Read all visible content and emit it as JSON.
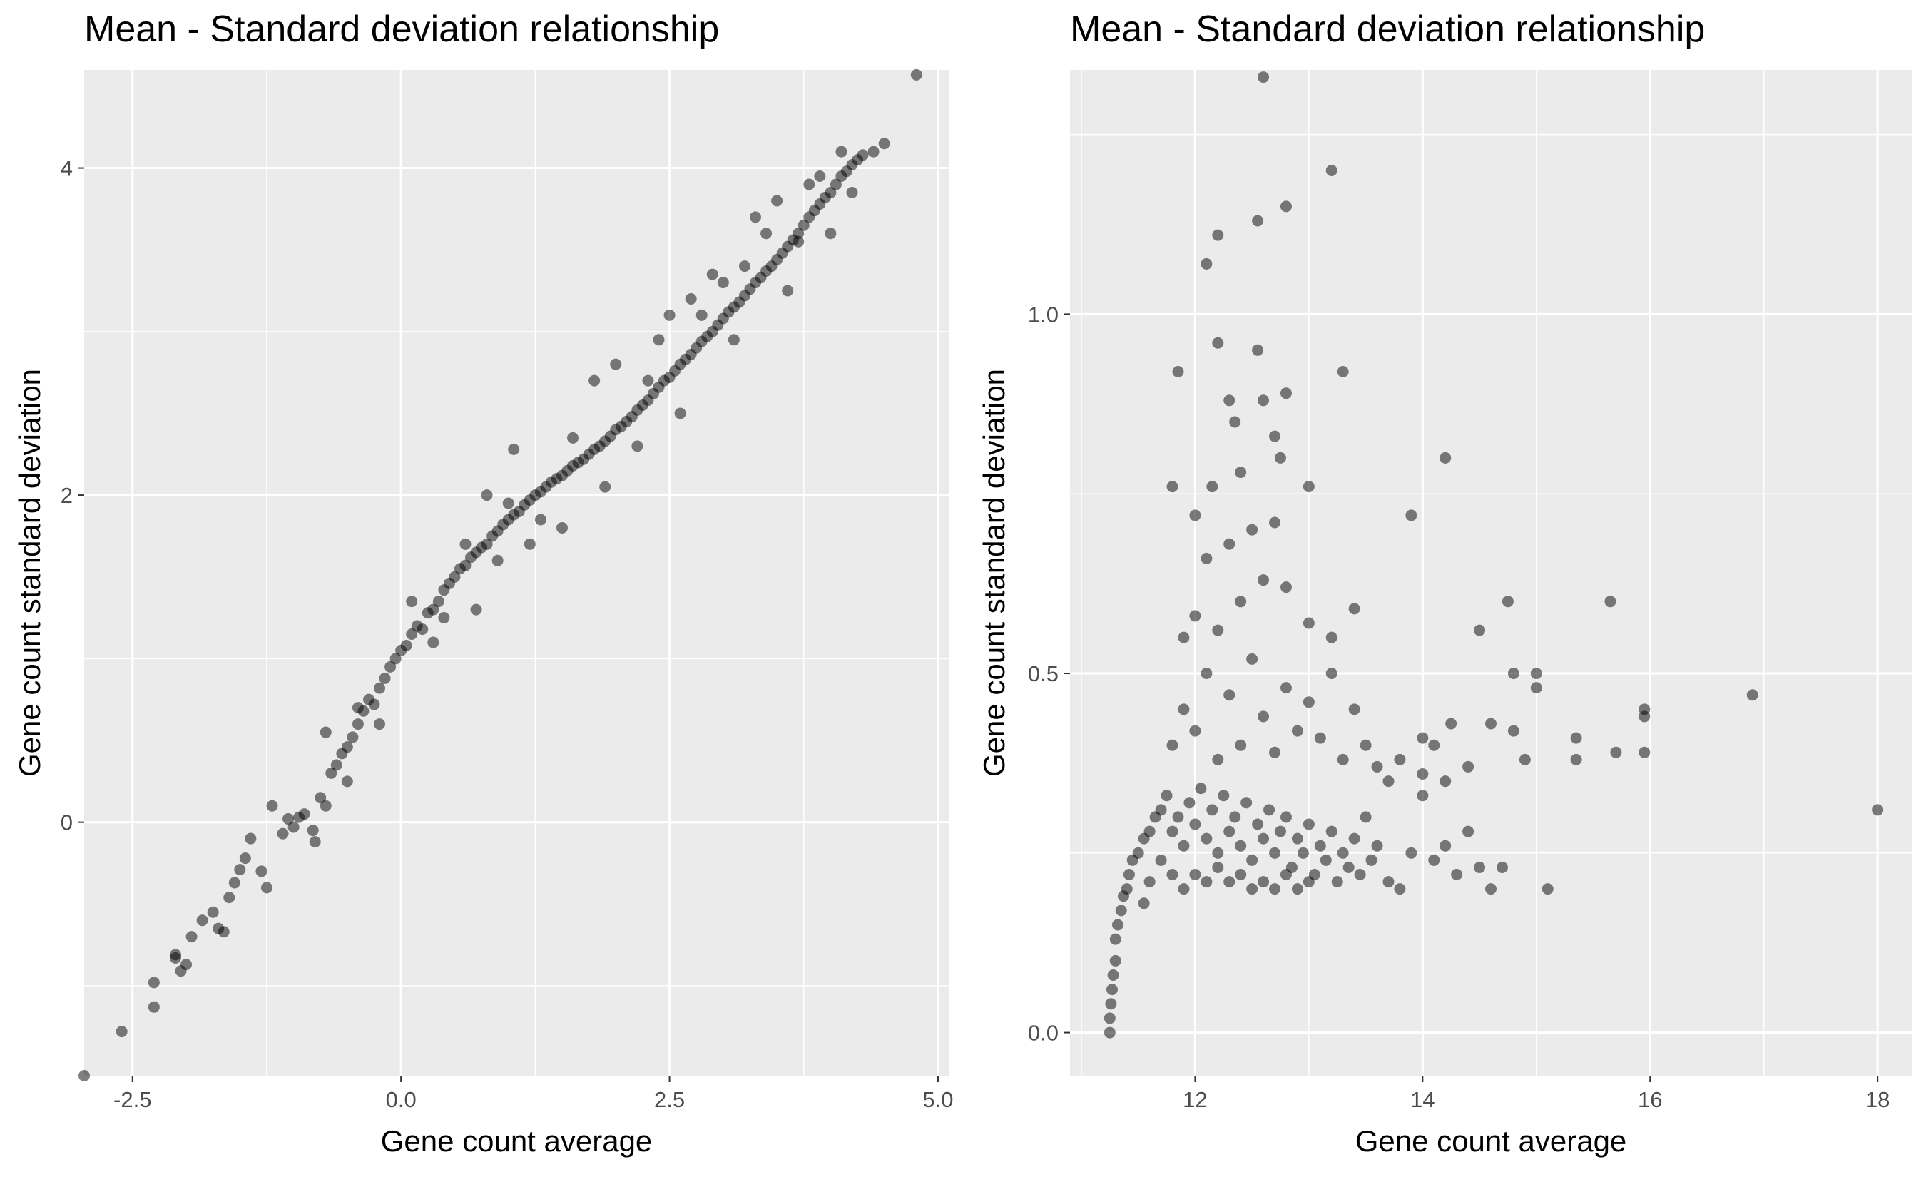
{
  "chart_data": [
    {
      "type": "scatter",
      "title": "Mean - Standard deviation relationship",
      "xlabel": "Gene count average",
      "ylabel": "Gene count standard deviation",
      "xlim": [
        -2.95,
        5.1
      ],
      "ylim": [
        -1.55,
        4.6
      ],
      "xticks": [
        -2.5,
        0.0,
        2.5,
        5.0
      ],
      "xtick_labels": [
        "-2.5",
        "0.0",
        "2.5",
        "5.0"
      ],
      "yticks": [
        0,
        2,
        4
      ],
      "ytick_labels": [
        "0",
        "2",
        "4"
      ],
      "grid": true,
      "legend": "none",
      "point_color": "#000000",
      "point_alpha": 0.5,
      "panel_background": "#ebebeb",
      "grid_color": "#ffffff",
      "points": [
        [
          -3.0,
          -1.57
        ],
        [
          -2.6,
          -1.28
        ],
        [
          -2.3,
          -1.13
        ],
        [
          -2.3,
          -0.98
        ],
        [
          -2.1,
          -0.81
        ],
        [
          -2.1,
          -0.83
        ],
        [
          -2.05,
          -0.91
        ],
        [
          -2.0,
          -0.87
        ],
        [
          -1.95,
          -0.7
        ],
        [
          -1.85,
          -0.6
        ],
        [
          -1.75,
          -0.55
        ],
        [
          -1.7,
          -0.65
        ],
        [
          -1.65,
          -0.67
        ],
        [
          -1.6,
          -0.46
        ],
        [
          -1.55,
          -0.37
        ],
        [
          -1.5,
          -0.29
        ],
        [
          -1.45,
          -0.22
        ],
        [
          -1.4,
          -0.1
        ],
        [
          -1.3,
          -0.3
        ],
        [
          -1.25,
          -0.4
        ],
        [
          -1.2,
          0.1
        ],
        [
          -1.1,
          -0.07
        ],
        [
          -1.05,
          0.02
        ],
        [
          -1.0,
          -0.03
        ],
        [
          -0.95,
          0.03
        ],
        [
          -0.9,
          0.05
        ],
        [
          -0.82,
          -0.05
        ],
        [
          -0.8,
          -0.12
        ],
        [
          -0.75,
          0.15
        ],
        [
          -0.7,
          0.1
        ],
        [
          -0.65,
          0.3
        ],
        [
          -0.6,
          0.35
        ],
        [
          -0.55,
          0.42
        ],
        [
          -0.5,
          0.46
        ],
        [
          -0.45,
          0.52
        ],
        [
          -0.4,
          0.6
        ],
        [
          -0.35,
          0.68
        ],
        [
          -0.3,
          0.75
        ],
        [
          -0.25,
          0.72
        ],
        [
          -0.2,
          0.82
        ],
        [
          -0.15,
          0.88
        ],
        [
          -0.1,
          0.95
        ],
        [
          -0.05,
          1.0
        ],
        [
          0.0,
          1.05
        ],
        [
          0.05,
          1.08
        ],
        [
          0.1,
          1.15
        ],
        [
          0.15,
          1.2
        ],
        [
          0.2,
          1.18
        ],
        [
          0.25,
          1.28
        ],
        [
          0.3,
          1.3
        ],
        [
          0.35,
          1.35
        ],
        [
          0.4,
          1.42
        ],
        [
          0.45,
          1.46
        ],
        [
          0.5,
          1.5
        ],
        [
          0.55,
          1.55
        ],
        [
          0.6,
          1.57
        ],
        [
          0.65,
          1.62
        ],
        [
          0.7,
          1.65
        ],
        [
          0.75,
          1.68
        ],
        [
          0.8,
          1.7
        ],
        [
          0.85,
          1.75
        ],
        [
          0.9,
          1.78
        ],
        [
          0.95,
          1.82
        ],
        [
          1.0,
          1.85
        ],
        [
          1.05,
          1.88
        ],
        [
          1.1,
          1.9
        ],
        [
          1.15,
          1.94
        ],
        [
          1.2,
          1.97
        ],
        [
          1.25,
          2.0
        ],
        [
          1.3,
          2.02
        ],
        [
          1.35,
          2.05
        ],
        [
          1.4,
          2.08
        ],
        [
          1.45,
          2.1
        ],
        [
          1.5,
          2.12
        ],
        [
          1.55,
          2.15
        ],
        [
          1.6,
          2.18
        ],
        [
          1.65,
          2.2
        ],
        [
          1.7,
          2.22
        ],
        [
          1.75,
          2.25
        ],
        [
          1.8,
          2.28
        ],
        [
          1.85,
          2.3
        ],
        [
          1.9,
          2.33
        ],
        [
          1.95,
          2.36
        ],
        [
          2.0,
          2.4
        ],
        [
          2.05,
          2.42
        ],
        [
          2.1,
          2.45
        ],
        [
          2.15,
          2.48
        ],
        [
          2.2,
          2.52
        ],
        [
          2.25,
          2.55
        ],
        [
          2.3,
          2.58
        ],
        [
          2.35,
          2.62
        ],
        [
          2.4,
          2.66
        ],
        [
          2.45,
          2.7
        ],
        [
          2.5,
          2.72
        ],
        [
          2.55,
          2.76
        ],
        [
          2.6,
          2.8
        ],
        [
          2.65,
          2.83
        ],
        [
          2.7,
          2.86
        ],
        [
          2.75,
          2.9
        ],
        [
          2.8,
          2.94
        ],
        [
          2.85,
          2.97
        ],
        [
          2.9,
          3.0
        ],
        [
          2.95,
          3.04
        ],
        [
          3.0,
          3.08
        ],
        [
          3.05,
          3.12
        ],
        [
          3.1,
          3.15
        ],
        [
          3.15,
          3.18
        ],
        [
          3.2,
          3.22
        ],
        [
          3.25,
          3.26
        ],
        [
          3.3,
          3.3
        ],
        [
          3.35,
          3.33
        ],
        [
          3.4,
          3.37
        ],
        [
          3.45,
          3.4
        ],
        [
          3.5,
          3.44
        ],
        [
          3.55,
          3.48
        ],
        [
          3.6,
          3.52
        ],
        [
          3.65,
          3.56
        ],
        [
          3.7,
          3.6
        ],
        [
          3.75,
          3.65
        ],
        [
          3.8,
          3.7
        ],
        [
          3.85,
          3.74
        ],
        [
          3.9,
          3.78
        ],
        [
          3.95,
          3.82
        ],
        [
          4.0,
          3.85
        ],
        [
          4.05,
          3.9
        ],
        [
          4.1,
          3.95
        ],
        [
          4.15,
          3.98
        ],
        [
          4.2,
          4.02
        ],
        [
          4.25,
          4.05
        ],
        [
          4.3,
          4.08
        ],
        [
          4.4,
          4.1
        ],
        [
          4.5,
          4.15
        ],
        [
          4.8,
          4.57
        ],
        [
          0.8,
          2.0
        ],
        [
          1.05,
          2.28
        ],
        [
          2.4,
          2.95
        ],
        [
          2.5,
          3.1
        ],
        [
          2.9,
          3.35
        ],
        [
          3.3,
          3.7
        ],
        [
          3.8,
          3.9
        ],
        [
          0.7,
          1.3
        ],
        [
          1.5,
          1.8
        ],
        [
          2.6,
          2.5
        ],
        [
          1.2,
          1.7
        ],
        [
          0.3,
          1.1
        ],
        [
          1.9,
          2.05
        ],
        [
          2.2,
          2.3
        ],
        [
          3.1,
          2.95
        ],
        [
          3.6,
          3.25
        ],
        [
          4.0,
          3.6
        ],
        [
          2.0,
          2.8
        ],
        [
          1.8,
          2.7
        ],
        [
          -0.5,
          0.25
        ],
        [
          -0.4,
          0.7
        ],
        [
          0.1,
          1.35
        ],
        [
          0.6,
          1.7
        ],
        [
          1.0,
          1.95
        ],
        [
          1.6,
          2.35
        ],
        [
          2.3,
          2.7
        ],
        [
          2.8,
          3.1
        ],
        [
          3.2,
          3.4
        ],
        [
          3.4,
          3.6
        ],
        [
          3.7,
          3.55
        ],
        [
          3.9,
          3.95
        ],
        [
          4.2,
          3.85
        ],
        [
          1.3,
          1.85
        ],
        [
          0.9,
          1.6
        ],
        [
          0.4,
          1.25
        ],
        [
          -0.2,
          0.6
        ],
        [
          -0.7,
          0.55
        ],
        [
          2.7,
          3.2
        ],
        [
          3.0,
          3.3
        ],
        [
          3.5,
          3.8
        ],
        [
          4.1,
          4.1
        ]
      ]
    },
    {
      "type": "scatter",
      "title": "Mean - Standard deviation relationship",
      "xlabel": "Gene count average",
      "ylabel": "Gene count standard deviation",
      "xlim": [
        10.9,
        18.3
      ],
      "ylim": [
        -0.06,
        1.34
      ],
      "xticks": [
        12,
        14,
        16,
        18
      ],
      "xtick_labels": [
        "12",
        "14",
        "16",
        "18"
      ],
      "yticks": [
        0.0,
        0.5,
        1.0
      ],
      "ytick_labels": [
        "0.0",
        "0.5",
        "1.0"
      ],
      "grid": true,
      "legend": "none",
      "point_color": "#000000",
      "point_alpha": 0.5,
      "panel_background": "#ebebeb",
      "grid_color": "#ffffff",
      "points": [
        [
          11.25,
          0.0
        ],
        [
          11.25,
          0.02
        ],
        [
          11.26,
          0.04
        ],
        [
          11.27,
          0.06
        ],
        [
          11.28,
          0.08
        ],
        [
          11.3,
          0.1
        ],
        [
          11.3,
          0.13
        ],
        [
          11.32,
          0.15
        ],
        [
          11.35,
          0.17
        ],
        [
          11.37,
          0.19
        ],
        [
          11.4,
          0.2
        ],
        [
          11.42,
          0.22
        ],
        [
          11.45,
          0.24
        ],
        [
          11.5,
          0.25
        ],
        [
          11.55,
          0.27
        ],
        [
          11.6,
          0.28
        ],
        [
          11.65,
          0.3
        ],
        [
          11.7,
          0.31
        ],
        [
          11.75,
          0.33
        ],
        [
          11.8,
          0.28
        ],
        [
          11.85,
          0.3
        ],
        [
          11.9,
          0.26
        ],
        [
          11.95,
          0.32
        ],
        [
          12.0,
          0.29
        ],
        [
          12.05,
          0.34
        ],
        [
          12.1,
          0.27
        ],
        [
          12.15,
          0.31
        ],
        [
          12.2,
          0.25
        ],
        [
          12.25,
          0.33
        ],
        [
          12.3,
          0.28
        ],
        [
          12.35,
          0.3
        ],
        [
          12.4,
          0.26
        ],
        [
          12.45,
          0.32
        ],
        [
          12.5,
          0.24
        ],
        [
          12.55,
          0.29
        ],
        [
          12.6,
          0.27
        ],
        [
          12.65,
          0.31
        ],
        [
          12.7,
          0.25
        ],
        [
          12.75,
          0.28
        ],
        [
          12.8,
          0.3
        ],
        [
          12.85,
          0.23
        ],
        [
          12.9,
          0.27
        ],
        [
          12.95,
          0.25
        ],
        [
          13.0,
          0.29
        ],
        [
          13.05,
          0.22
        ],
        [
          13.1,
          0.26
        ],
        [
          13.15,
          0.24
        ],
        [
          13.2,
          0.28
        ],
        [
          13.25,
          0.21
        ],
        [
          13.3,
          0.25
        ],
        [
          13.35,
          0.23
        ],
        [
          13.4,
          0.27
        ],
        [
          13.45,
          0.22
        ],
        [
          13.5,
          0.3
        ],
        [
          13.55,
          0.24
        ],
        [
          13.6,
          0.26
        ],
        [
          13.7,
          0.21
        ],
        [
          13.8,
          0.2
        ],
        [
          13.9,
          0.25
        ],
        [
          14.0,
          0.33
        ],
        [
          14.1,
          0.24
        ],
        [
          14.2,
          0.26
        ],
        [
          14.3,
          0.22
        ],
        [
          14.4,
          0.28
        ],
        [
          14.5,
          0.23
        ],
        [
          14.6,
          0.2
        ],
        [
          14.7,
          0.23
        ],
        [
          15.1,
          0.2
        ],
        [
          11.55,
          0.18
        ],
        [
          11.6,
          0.21
        ],
        [
          11.7,
          0.24
        ],
        [
          11.8,
          0.22
        ],
        [
          11.9,
          0.2
        ],
        [
          12.0,
          0.22
        ],
        [
          12.1,
          0.21
        ],
        [
          12.2,
          0.23
        ],
        [
          12.3,
          0.21
        ],
        [
          12.4,
          0.22
        ],
        [
          12.5,
          0.2
        ],
        [
          12.6,
          0.21
        ],
        [
          12.7,
          0.2
        ],
        [
          12.8,
          0.22
        ],
        [
          12.9,
          0.2
        ],
        [
          13.0,
          0.21
        ],
        [
          11.8,
          0.4
        ],
        [
          11.9,
          0.45
        ],
        [
          12.0,
          0.42
        ],
        [
          12.1,
          0.5
        ],
        [
          12.2,
          0.38
        ],
        [
          12.3,
          0.47
        ],
        [
          12.4,
          0.4
        ],
        [
          12.5,
          0.52
        ],
        [
          12.6,
          0.44
        ],
        [
          12.7,
          0.39
        ],
        [
          12.8,
          0.48
        ],
        [
          12.9,
          0.42
        ],
        [
          13.0,
          0.46
        ],
        [
          13.1,
          0.41
        ],
        [
          13.2,
          0.5
        ],
        [
          13.3,
          0.38
        ],
        [
          13.4,
          0.45
        ],
        [
          13.5,
          0.4
        ],
        [
          13.6,
          0.37
        ],
        [
          13.7,
          0.35
        ],
        [
          13.8,
          0.38
        ],
        [
          14.0,
          0.36
        ],
        [
          14.2,
          0.35
        ],
        [
          14.4,
          0.37
        ],
        [
          11.9,
          0.55
        ],
        [
          12.0,
          0.58
        ],
        [
          12.2,
          0.56
        ],
        [
          12.4,
          0.6
        ],
        [
          12.6,
          0.63
        ],
        [
          12.8,
          0.62
        ],
        [
          13.0,
          0.57
        ],
        [
          13.2,
          0.55
        ],
        [
          13.4,
          0.59
        ],
        [
          12.1,
          0.66
        ],
        [
          12.3,
          0.68
        ],
        [
          12.5,
          0.7
        ],
        [
          12.7,
          0.71
        ],
        [
          13.0,
          0.76
        ],
        [
          12.0,
          0.72
        ],
        [
          11.8,
          0.76
        ],
        [
          12.15,
          0.76
        ],
        [
          12.4,
          0.78
        ],
        [
          12.75,
          0.8
        ],
        [
          12.2,
          0.96
        ],
        [
          12.55,
          0.95
        ],
        [
          11.85,
          0.92
        ],
        [
          13.3,
          0.92
        ],
        [
          12.3,
          0.88
        ],
        [
          12.6,
          0.88
        ],
        [
          12.8,
          0.89
        ],
        [
          12.35,
          0.85
        ],
        [
          12.7,
          0.83
        ],
        [
          12.1,
          1.07
        ],
        [
          12.2,
          1.11
        ],
        [
          12.55,
          1.13
        ],
        [
          12.8,
          1.15
        ],
        [
          13.2,
          1.2
        ],
        [
          12.6,
          1.33
        ],
        [
          14.2,
          0.8
        ],
        [
          13.9,
          0.72
        ],
        [
          14.5,
          0.56
        ],
        [
          14.75,
          0.6
        ],
        [
          14.8,
          0.5
        ],
        [
          15.0,
          0.5
        ],
        [
          15.0,
          0.48
        ],
        [
          15.65,
          0.6
        ],
        [
          15.95,
          0.45
        ],
        [
          15.95,
          0.44
        ],
        [
          16.9,
          0.47
        ],
        [
          14.8,
          0.42
        ],
        [
          14.6,
          0.43
        ],
        [
          15.35,
          0.41
        ],
        [
          15.35,
          0.38
        ],
        [
          15.7,
          0.39
        ],
        [
          15.95,
          0.39
        ],
        [
          14.25,
          0.43
        ],
        [
          14.0,
          0.41
        ],
        [
          18.0,
          0.31
        ],
        [
          14.9,
          0.38
        ],
        [
          14.1,
          0.4
        ]
      ]
    }
  ]
}
